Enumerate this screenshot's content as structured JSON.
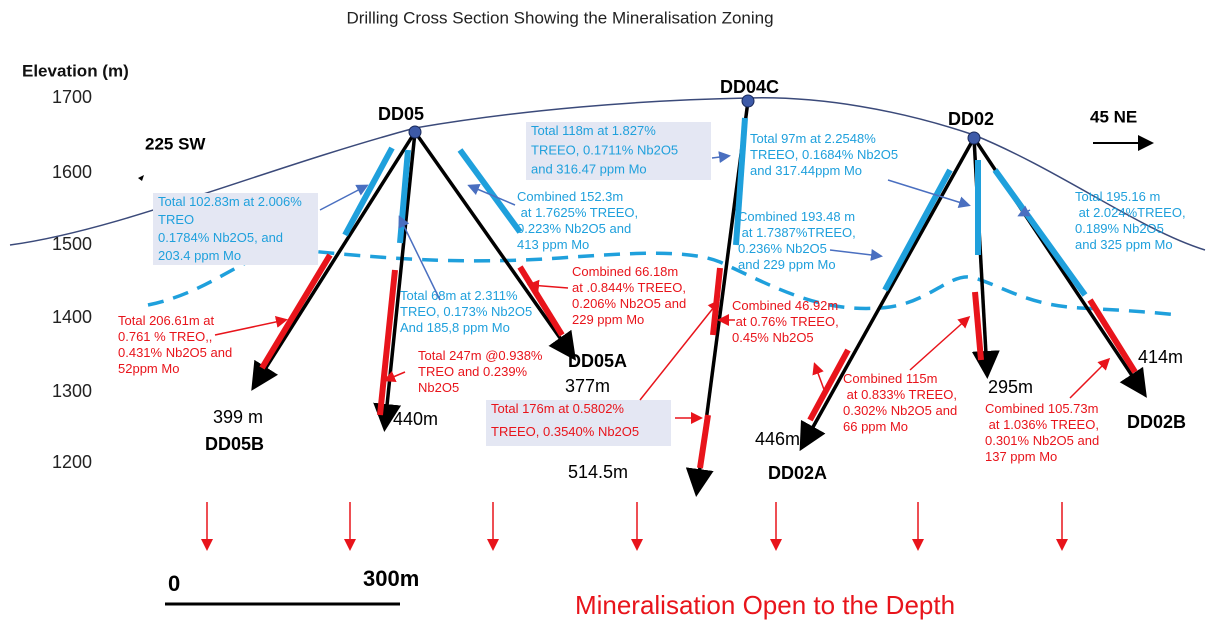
{
  "title": "Drilling Cross Section Showing the Mineralisation Zoning",
  "axis_label": "Elevation (m)",
  "elevation_ticks": [
    "1700",
    "1600",
    "1500",
    "1400",
    "1300",
    "1200"
  ],
  "directions": {
    "left": "225 SW",
    "right": "45 NE"
  },
  "holes": [
    {
      "name": "DD05B",
      "depth": "399 m"
    },
    {
      "name": "DD05",
      "depth": "440m"
    },
    {
      "name": "DD05A",
      "depth": "377m"
    },
    {
      "name": "DD04C",
      "depth": "514.5m"
    },
    {
      "name": "DD02A",
      "depth": "446m"
    },
    {
      "name": "DD02",
      "depth": "295m"
    },
    {
      "name": "DD02B",
      "depth": "414m"
    }
  ],
  "annotations": [
    {
      "lines": [
        "Total 102.83m at 2.006%",
        "TREO",
        "0.1784% Nb2O5,  and",
        "203.4 ppm Mo"
      ]
    },
    {
      "lines": [
        "Combined  152.3m",
        " at 1.7625% TREEO,",
        "0.223% Nb2O5 and",
        "413 ppm Mo"
      ]
    },
    {
      "lines": [
        "Total 68m at 2.311%",
        "TREO, 0.173% Nb2O5",
        "And 185,8 ppm Mo"
      ]
    },
    {
      "lines": [
        "Total 118m at 1.827%",
        "TREEO, 0.1711% Nb2O5",
        "and 316.47 ppm Mo"
      ]
    },
    {
      "lines": [
        "Total  97m at 2.2548%",
        "TREEO, 0.1684% Nb2O5",
        "and 317.44ppm Mo"
      ]
    },
    {
      "lines": [
        "Combined 193.48 m",
        " at 1.7387%TREEO,",
        "0.236% Nb2O5",
        "and 229 ppm Mo"
      ]
    },
    {
      "lines": [
        "Total 195.16 m",
        " at 2.024%TREEO,",
        "0.189% Nb2O5",
        "and 325 ppm Mo"
      ]
    },
    {
      "lines": [
        "Total 206.61m at",
        "0.761 % TREO,,",
        "0.431% Nb2O5 and",
        "52ppm Mo"
      ]
    },
    {
      "lines": [
        "Total 247m @0.938%",
        "TREO and 0.239%",
        "Nb2O5"
      ]
    },
    {
      "lines": [
        "Combined  66.18m",
        "at .0.844% TREEO,",
        "0.206% Nb2O5 and",
        "229 ppm Mo"
      ]
    },
    {
      "lines": [
        "Combined  46.92m",
        " at 0.76% TREEO,",
        "0.45% Nb2O5"
      ]
    },
    {
      "lines": [
        "Total  176m at 0.5802%",
        "TREEO, 0.3540% Nb2O5"
      ]
    },
    {
      "lines": [
        "Combined  115m",
        " at 0.833% TREEO,",
        "0.302% Nb2O5 and",
        "66 ppm Mo"
      ]
    },
    {
      "lines": [
        "Combined  105.73m",
        " at 1.036% TREEO,",
        "0.301% Nb2O5 and",
        "137 ppm Mo"
      ]
    }
  ],
  "scale": {
    "start": "0",
    "end": "300m"
  },
  "footer": "Mineralisation Open to the Depth"
}
